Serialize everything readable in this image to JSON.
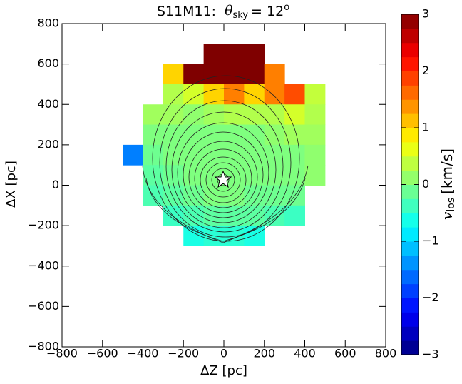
{
  "chart_data": {
    "type": "heatmap",
    "title": {
      "prefix": "S11M11:",
      "symbol": "θ",
      "subscript": "sky",
      "rest": "= 12",
      "superscript": "o"
    },
    "xlabel": "ΔZ [pc]",
    "ylabel": "ΔX [pc]",
    "colorbar_label": {
      "symbol": "v",
      "subscript": "los",
      "rest": "[km/s]"
    },
    "x": [
      -450,
      -350,
      -250,
      -150,
      -50,
      50,
      150,
      250,
      350,
      450
    ],
    "y": [
      650,
      550,
      450,
      350,
      250,
      150,
      50,
      -50,
      -150,
      -250
    ],
    "values": [
      [
        null,
        null,
        null,
        null,
        3,
        3,
        3,
        null,
        null,
        null
      ],
      [
        null,
        null,
        1,
        3,
        3,
        3,
        3,
        1.5,
        null,
        null
      ],
      [
        null,
        null,
        0.3,
        0.5,
        1,
        1.5,
        1,
        1.5,
        1.8,
        0.4
      ],
      [
        null,
        0.2,
        0.2,
        0.1,
        0.2,
        0.3,
        0.3,
        0.3,
        0.5,
        0.3
      ],
      [
        null,
        0,
        0,
        0,
        0,
        0,
        0,
        0.1,
        0.2,
        0.2
      ],
      [
        -1.5,
        -0.1,
        0,
        0,
        0,
        0,
        0,
        0,
        0,
        0.1
      ],
      [
        null,
        -0.2,
        -0.1,
        0,
        0,
        0,
        0,
        0,
        0,
        0.1
      ],
      [
        null,
        -0.3,
        -0.2,
        -0.1,
        0,
        0,
        -0.1,
        -0.1,
        -0.1,
        null
      ],
      [
        null,
        null,
        -0.4,
        -0.3,
        -0.2,
        -0.2,
        -0.2,
        -0.3,
        -0.4,
        null
      ],
      [
        null,
        null,
        null,
        -0.6,
        -0.5,
        -0.5,
        -0.6,
        null,
        null,
        null
      ]
    ],
    "xlim": [
      -800,
      800
    ],
    "ylim": [
      -800,
      800
    ],
    "xticks": [
      {
        "value": -800,
        "label": "−800"
      },
      {
        "value": -600,
        "label": "−600"
      },
      {
        "value": -400,
        "label": "−400"
      },
      {
        "value": -200,
        "label": "−200"
      },
      0,
      200,
      400,
      600,
      800
    ],
    "yticks": [
      {
        "value": -800,
        "label": "−800"
      },
      {
        "value": -600,
        "label": "−600"
      },
      {
        "value": -400,
        "label": "−400"
      },
      {
        "value": -200,
        "label": "−200"
      },
      0,
      200,
      400,
      600,
      800
    ],
    "clim": [
      -3,
      3
    ],
    "cticks": [
      {
        "value": -3,
        "label": "−3"
      },
      {
        "value": -2,
        "label": "−2"
      },
      {
        "value": -1,
        "label": "−1"
      },
      0,
      1,
      2,
      3
    ],
    "colormap": [
      "#00007f",
      "#0000ff",
      "#007fff",
      "#00ffff",
      "#7fff7f",
      "#ffff00",
      "#ff7f00",
      "#ff0000",
      "#7f0000"
    ]
  }
}
